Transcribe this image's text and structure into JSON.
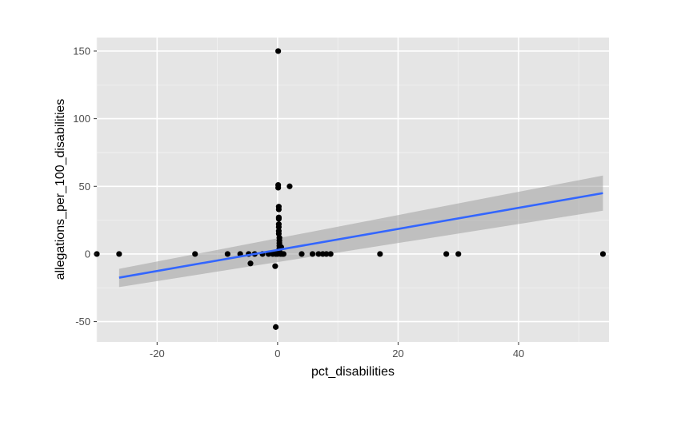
{
  "chart_data": {
    "type": "scatter",
    "title": "",
    "xlabel": "pct_disabilities",
    "ylabel": "allegations_per_100_disabilities",
    "xlim": [
      -30,
      55
    ],
    "ylim": [
      -65,
      160
    ],
    "x_ticks": [
      -20,
      0,
      20,
      40
    ],
    "x_tick_labels": [
      "-20",
      "0",
      "20",
      "40"
    ],
    "y_ticks": [
      -50,
      0,
      50,
      100,
      150
    ],
    "y_tick_labels": [
      "-50",
      "0",
      "50",
      "100",
      "150"
    ],
    "grid": true,
    "background": "#e5e5e5",
    "point_color": "#000000",
    "points": [
      {
        "x": -30,
        "y": 0
      },
      {
        "x": -26.3,
        "y": 0
      },
      {
        "x": -13.7,
        "y": 0
      },
      {
        "x": -8.3,
        "y": 0
      },
      {
        "x": -6.2,
        "y": 0
      },
      {
        "x": -4.8,
        "y": 0
      },
      {
        "x": -4.5,
        "y": -7
      },
      {
        "x": -3.8,
        "y": 0
      },
      {
        "x": -2.5,
        "y": 0
      },
      {
        "x": -1.5,
        "y": 0
      },
      {
        "x": -0.8,
        "y": 0
      },
      {
        "x": -0.4,
        "y": -9
      },
      {
        "x": -0.3,
        "y": 0
      },
      {
        "x": -0.3,
        "y": -54
      },
      {
        "x": 0,
        "y": 0
      },
      {
        "x": 0.1,
        "y": 150
      },
      {
        "x": 0.1,
        "y": 51
      },
      {
        "x": 0.1,
        "y": 49
      },
      {
        "x": 0.2,
        "y": 35
      },
      {
        "x": 0.2,
        "y": 33
      },
      {
        "x": 0.2,
        "y": 27
      },
      {
        "x": 0.2,
        "y": 26
      },
      {
        "x": 0.2,
        "y": 22
      },
      {
        "x": 0.2,
        "y": 20
      },
      {
        "x": 0.2,
        "y": 17
      },
      {
        "x": 0.2,
        "y": 15
      },
      {
        "x": 0.3,
        "y": 12
      },
      {
        "x": 0.3,
        "y": 10
      },
      {
        "x": 0.3,
        "y": 8
      },
      {
        "x": 0.3,
        "y": 6
      },
      {
        "x": 0.3,
        "y": 4
      },
      {
        "x": 0.3,
        "y": 2
      },
      {
        "x": 0.4,
        "y": 1
      },
      {
        "x": 0.5,
        "y": 0
      },
      {
        "x": 0.6,
        "y": 5
      },
      {
        "x": 0.8,
        "y": 0
      },
      {
        "x": 1.0,
        "y": 0
      },
      {
        "x": 2.0,
        "y": 50
      },
      {
        "x": 4.0,
        "y": 0
      },
      {
        "x": 5.8,
        "y": 0
      },
      {
        "x": 6.8,
        "y": 0
      },
      {
        "x": 7.5,
        "y": 0
      },
      {
        "x": 8.1,
        "y": 0
      },
      {
        "x": 8.8,
        "y": 0
      },
      {
        "x": 17.0,
        "y": 0
      },
      {
        "x": 28.0,
        "y": 0
      },
      {
        "x": 30.0,
        "y": 0
      },
      {
        "x": 54.0,
        "y": 0
      }
    ],
    "smooth_line": {
      "method": "linear",
      "color": "#3366ff",
      "band_color": "#999999",
      "start": {
        "x": -26.3,
        "y": -17.5,
        "lower": -24.5,
        "upper": -11
      },
      "end": {
        "x": 54.0,
        "y": 45,
        "lower": 32,
        "upper": 58
      }
    }
  }
}
